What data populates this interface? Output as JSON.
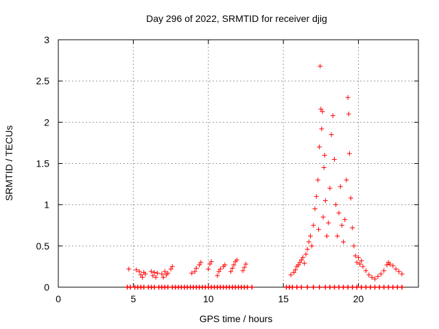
{
  "chart_data": {
    "type": "scatter",
    "title": "Day 296 of 2022, SRMTID for receiver djig",
    "xlabel": "GPS time / hours",
    "ylabel": "SRMTID / TECUs",
    "xlim": [
      0,
      24
    ],
    "ylim": [
      0,
      3
    ],
    "x_ticks": [
      0,
      5,
      10,
      15,
      20
    ],
    "x_tick_labels": [
      "0",
      "5",
      "10",
      "15",
      "20"
    ],
    "y_ticks": [
      0,
      0.5,
      1,
      1.5,
      2,
      2.5,
      3
    ],
    "y_tick_labels": [
      "0",
      "0.5",
      "1",
      "1.5",
      "2",
      "2.5",
      "3"
    ],
    "grid": true,
    "marker": "+",
    "colors": {
      "series": "#ff0000",
      "grid": "#999999",
      "axis": "#000000"
    },
    "series": [
      {
        "name": "SRMTID",
        "points": [
          [
            4.7,
            0.22
          ],
          [
            5.2,
            0.21
          ],
          [
            5.4,
            0.19
          ],
          [
            5.5,
            0.15
          ],
          [
            5.6,
            0.12
          ],
          [
            5.7,
            0.18
          ],
          [
            5.8,
            0.16
          ],
          [
            6.2,
            0.19
          ],
          [
            6.3,
            0.14
          ],
          [
            6.4,
            0.18
          ],
          [
            6.5,
            0.12
          ],
          [
            6.6,
            0.17
          ],
          [
            6.9,
            0.16
          ],
          [
            7.0,
            0.12
          ],
          [
            7.1,
            0.19
          ],
          [
            7.2,
            0.15
          ],
          [
            7.3,
            0.17
          ],
          [
            7.5,
            0.22
          ],
          [
            7.6,
            0.25
          ],
          [
            8.9,
            0.17
          ],
          [
            9.1,
            0.19
          ],
          [
            9.2,
            0.23
          ],
          [
            9.4,
            0.27
          ],
          [
            9.5,
            0.3
          ],
          [
            10.0,
            0.22
          ],
          [
            10.1,
            0.28
          ],
          [
            10.2,
            0.31
          ],
          [
            10.6,
            0.14
          ],
          [
            10.7,
            0.19
          ],
          [
            10.8,
            0.22
          ],
          [
            11.0,
            0.25
          ],
          [
            11.1,
            0.27
          ],
          [
            11.5,
            0.19
          ],
          [
            11.6,
            0.23
          ],
          [
            11.7,
            0.27
          ],
          [
            11.8,
            0.31
          ],
          [
            11.9,
            0.33
          ],
          [
            12.3,
            0.2
          ],
          [
            12.4,
            0.24
          ],
          [
            12.5,
            0.28
          ],
          [
            15.5,
            0.15
          ],
          [
            15.7,
            0.18
          ],
          [
            15.8,
            0.21
          ],
          [
            15.9,
            0.25
          ],
          [
            16.0,
            0.27
          ],
          [
            16.1,
            0.3
          ],
          [
            16.2,
            0.33
          ],
          [
            16.3,
            0.36
          ],
          [
            16.4,
            0.29
          ],
          [
            16.5,
            0.4
          ],
          [
            16.6,
            0.46
          ],
          [
            16.7,
            0.55
          ],
          [
            16.8,
            0.62
          ],
          [
            16.9,
            0.5
          ],
          [
            17.0,
            0.75
          ],
          [
            17.1,
            0.95
          ],
          [
            17.2,
            1.1
          ],
          [
            17.3,
            1.3
          ],
          [
            17.4,
            1.7
          ],
          [
            17.5,
            2.16
          ],
          [
            17.6,
            2.13
          ],
          [
            17.7,
            1.45
          ],
          [
            17.8,
            1.05
          ],
          [
            17.9,
            0.62
          ],
          [
            17.45,
            2.68
          ],
          [
            17.55,
            1.92
          ],
          [
            17.65,
            0.85
          ],
          [
            17.75,
            1.6
          ],
          [
            17.35,
            0.7
          ],
          [
            18.0,
            0.78
          ],
          [
            18.1,
            1.2
          ],
          [
            18.2,
            1.85
          ],
          [
            18.3,
            2.08
          ],
          [
            18.4,
            1.55
          ],
          [
            18.5,
            1.0
          ],
          [
            18.6,
            0.62
          ],
          [
            18.7,
            0.9
          ],
          [
            18.8,
            1.22
          ],
          [
            18.9,
            0.75
          ],
          [
            19.0,
            0.55
          ],
          [
            19.1,
            0.82
          ],
          [
            19.2,
            1.3
          ],
          [
            19.3,
            2.3
          ],
          [
            19.35,
            2.1
          ],
          [
            19.4,
            1.62
          ],
          [
            19.5,
            1.08
          ],
          [
            19.6,
            0.72
          ],
          [
            19.7,
            0.5
          ],
          [
            19.8,
            0.38
          ],
          [
            19.9,
            0.3
          ],
          [
            20.0,
            0.36
          ],
          [
            20.1,
            0.28
          ],
          [
            20.2,
            0.32
          ],
          [
            20.3,
            0.25
          ],
          [
            20.5,
            0.2
          ],
          [
            20.7,
            0.15
          ],
          [
            20.9,
            0.12
          ],
          [
            21.1,
            0.1
          ],
          [
            21.3,
            0.13
          ],
          [
            21.5,
            0.16
          ],
          [
            21.7,
            0.2
          ],
          [
            21.9,
            0.27
          ],
          [
            22.0,
            0.3
          ],
          [
            22.1,
            0.28
          ],
          [
            22.3,
            0.26
          ],
          [
            22.5,
            0.22
          ],
          [
            22.7,
            0.19
          ],
          [
            22.9,
            0.16
          ]
        ]
      }
    ],
    "zero_markers": [
      4.6,
      4.8,
      5.1,
      5.3,
      5.5,
      5.7,
      6.0,
      6.2,
      6.4,
      6.7,
      6.9,
      7.1,
      7.3,
      7.6,
      7.8,
      8.0,
      8.2,
      8.4,
      8.6,
      8.8,
      9.0,
      9.2,
      9.4,
      9.6,
      9.8,
      10.0,
      10.2,
      10.4,
      10.6,
      10.8,
      11.0,
      11.2,
      11.4,
      11.6,
      11.8,
      12.0,
      12.2,
      12.4,
      12.6,
      12.9,
      15.2,
      15.4,
      15.6,
      15.9,
      16.2,
      16.6,
      17.0,
      17.4,
      17.8,
      18.1,
      18.4,
      18.7,
      19.0,
      19.3,
      19.6,
      19.9,
      20.2,
      20.5,
      20.8,
      21.1,
      21.4,
      21.7,
      22.0,
      22.3,
      22.6,
      22.9
    ]
  }
}
